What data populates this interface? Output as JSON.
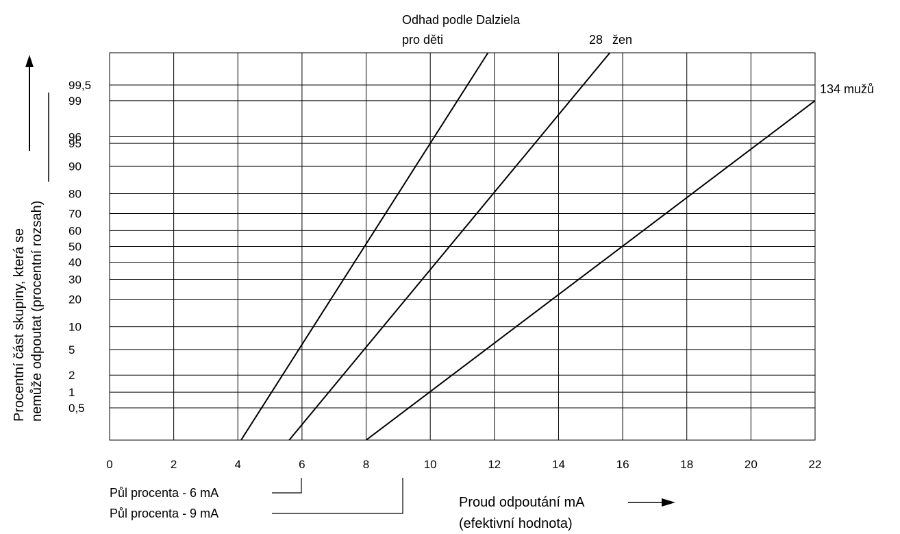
{
  "chart_data": {
    "type": "line",
    "title": "",
    "xlabel": {
      "line1": "Proud odpoutání mA",
      "line2": "(efektivní hodnota)"
    },
    "ylabel": {
      "line1": "Procentní část skupiny, která se",
      "line2": "nemůže odpoutat (procentní rozsah)"
    },
    "xlim": [
      0,
      22
    ],
    "x_ticks": [
      "0",
      "2",
      "4",
      "6",
      "8",
      "10",
      "12",
      "14",
      "16",
      "18",
      "20",
      "22"
    ],
    "y_scale": "probability",
    "y_ticks": [
      "0,5",
      "1",
      "2",
      "5",
      "10",
      "20",
      "30",
      "40",
      "50",
      "60",
      "70",
      "80",
      "90",
      "95",
      "96",
      "99",
      "99,5"
    ],
    "grid": true,
    "series": [
      {
        "name_lines": [
          "Odhad podle Dalziela",
          "pro děti"
        ],
        "points": [
          [
            4.1,
            0.1
          ],
          [
            11.8,
            99.9
          ]
        ]
      },
      {
        "name_lines": [
          "28",
          "žen"
        ],
        "points": [
          [
            5.6,
            0.1
          ],
          [
            15.6,
            99.9
          ]
        ]
      },
      {
        "name_lines": [
          "134 mužů"
        ],
        "points": [
          [
            8.0,
            0.1
          ],
          [
            22.0,
            99
          ]
        ]
      }
    ],
    "annotations": [
      {
        "text": "Půl procenta - 6 mA",
        "x": 6
      },
      {
        "text": "Půl procenta - 9 mA",
        "x": 9.2
      }
    ]
  }
}
